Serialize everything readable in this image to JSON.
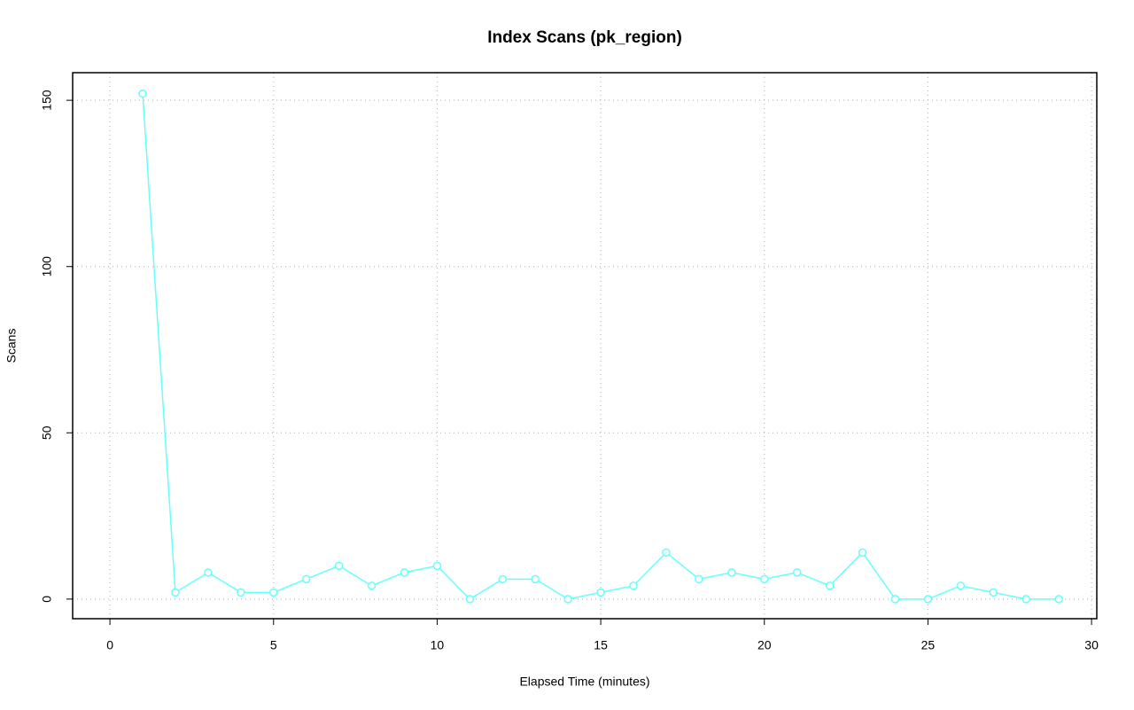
{
  "chart_data": {
    "type": "line",
    "title": "Index Scans (pk_region)",
    "x_label": "Elapsed Time (minutes)",
    "y_label": "Scans",
    "x": [
      1,
      2,
      3,
      4,
      5,
      6,
      7,
      8,
      9,
      10,
      11,
      12,
      13,
      14,
      15,
      16,
      17,
      18,
      19,
      20,
      21,
      22,
      23,
      24,
      25,
      26,
      27,
      28,
      29
    ],
    "series": [
      {
        "name": "pk_region",
        "color": "#66ffff",
        "values": [
          152,
          2,
          8,
          2,
          2,
          6,
          10,
          4,
          8,
          10,
          0,
          6,
          6,
          0,
          2,
          4,
          14,
          6,
          8,
          6,
          8,
          4,
          14,
          0,
          0,
          4,
          2,
          0,
          0
        ]
      }
    ],
    "xlim": [
      -1.14,
      30.16
    ],
    "xticks": [
      0,
      5,
      10,
      15,
      20,
      25,
      30
    ],
    "ylim": [
      -5.9,
      158.3
    ],
    "yticks": [
      0,
      50,
      100,
      150
    ],
    "grid": true,
    "markers": "open-circle"
  }
}
